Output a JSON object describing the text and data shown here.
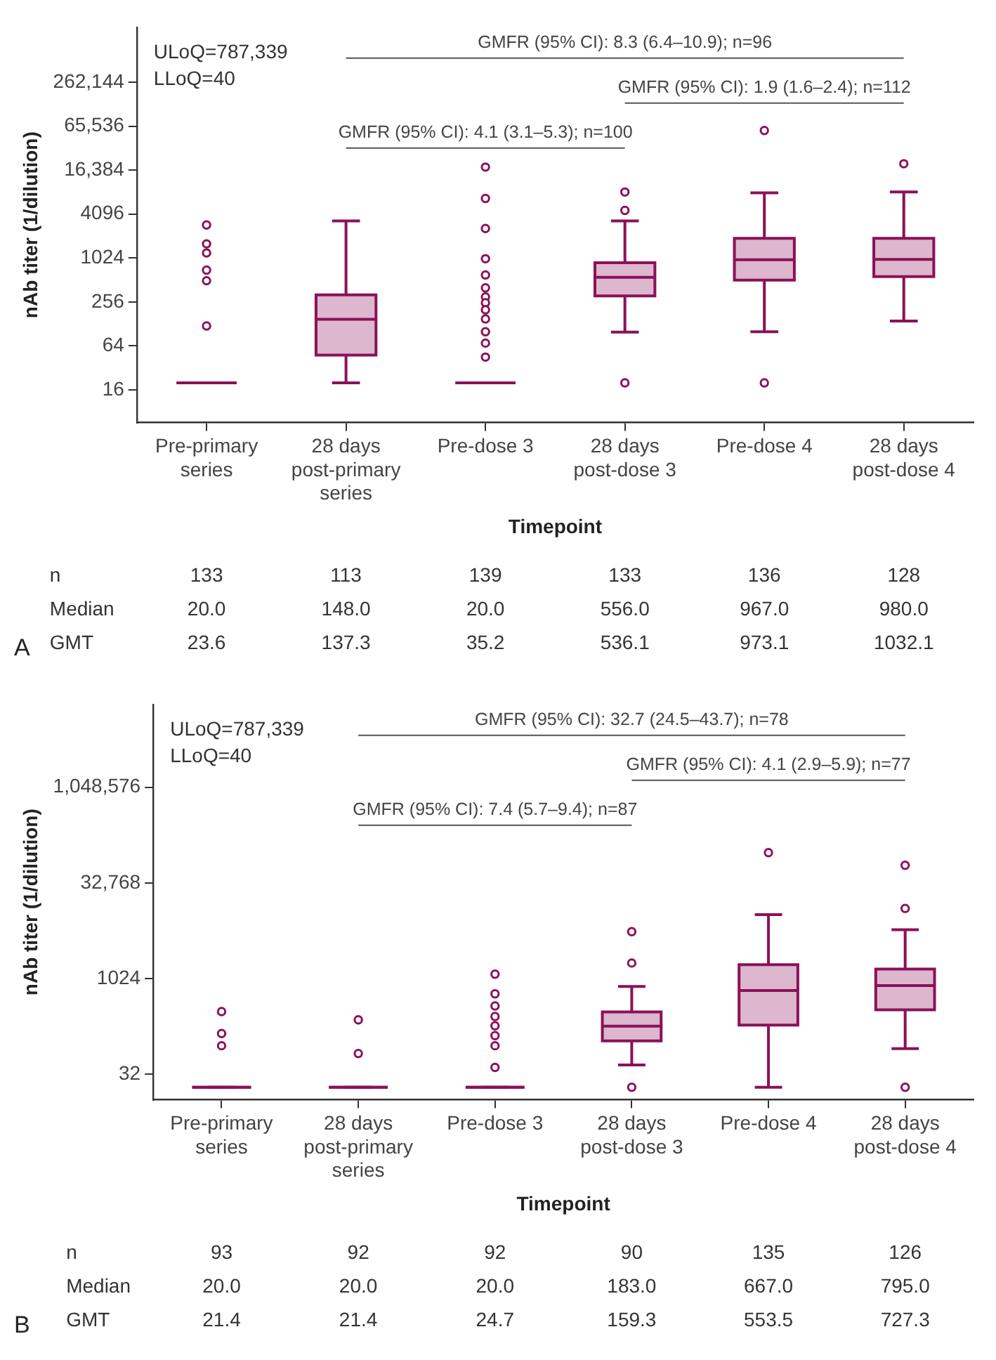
{
  "chart_data": [
    {
      "type": "box",
      "xlabel": "Timepoint",
      "ylabel": "nAb titer (1/dilution)",
      "color": "#8b1158",
      "log": "y",
      "categories": [
        "Pre-primary series",
        "28 days post-primary series",
        "Pre-dose 3",
        "28 days post-dose 3",
        "Pre-dose 4",
        "28 days post-dose 4"
      ],
      "ylim": [
        5.7,
        1480000
      ],
      "yticks": [
        16,
        64,
        256,
        1024,
        4096,
        {
          "value": 16384,
          "label": "16,384"
        },
        {
          "value": 65536,
          "label": "65,536"
        },
        {
          "value": 262144,
          "label": "262,144"
        }
      ],
      "boxes": [
        {
          "low": 20,
          "q1": 20,
          "median": 20,
          "q3": 20,
          "high": 20,
          "outliers": [
            2900,
            1600,
            1200,
            700,
            500,
            120
          ]
        },
        {
          "low": 20,
          "q1": 48,
          "median": 148,
          "q3": 320,
          "high": 3300
        },
        {
          "low": 20,
          "q1": 20,
          "median": 20,
          "q3": 20,
          "high": 20,
          "outliers": [
            18000,
            6700,
            2600,
            1000,
            600,
            400,
            300,
            250,
            200,
            150,
            100,
            70,
            45
          ]
        },
        {
          "low": 99,
          "q1": 310,
          "median": 556,
          "q3": 880,
          "high": 3300,
          "outliers": [
            8200,
            4600,
            20
          ]
        },
        {
          "low": 100,
          "q1": 510,
          "median": 967,
          "q3": 1900,
          "high": 8000,
          "outliers": [
            57000,
            20
          ]
        },
        {
          "low": 140,
          "q1": 570,
          "median": 980,
          "q3": 1900,
          "high": 8200,
          "outliers": [
            20000
          ]
        }
      ],
      "annotations": [
        "ULoQ=787,339",
        "LLoQ=40",
        "GMFR (95% CI): 8.3 (6.4–10.9); n=96",
        "GMFR (95% CI): 1.9 (1.6–2.4); n=112",
        "GMFR (95% CI): 4.1 (3.1–5.3); n=100",
        "A",
        "n",
        "133",
        "113",
        "139",
        "133",
        "136",
        "128",
        "Median",
        "20.0",
        "148.0",
        "20.0",
        "556.0",
        "967.0",
        "980.0",
        "GMT",
        "23.6",
        "137.3",
        "35.2",
        "536.1",
        "973.1",
        "1032.1"
      ]
    },
    {
      "type": "box",
      "xlabel": "Timepoint",
      "ylabel": "nAb titer (1/dilution)",
      "color": "#8b1158",
      "log": "y",
      "categories": [
        "Pre-primary series",
        "28 days post-primary series",
        "Pre-dose 3",
        "28 days post-dose 3",
        "Pre-dose 4",
        "28 days post-dose 4"
      ],
      "ylim": [
        12.7,
        21000000
      ],
      "yticks": [
        32,
        1024,
        {
          "value": 32768,
          "label": "32,768"
        },
        {
          "value": 1048576,
          "label": "1,048,576"
        }
      ],
      "boxes": [
        {
          "low": 20,
          "q1": 20,
          "median": 20,
          "q3": 20,
          "high": 20,
          "outliers": [
            310,
            140,
            90
          ]
        },
        {
          "low": 20,
          "q1": 20,
          "median": 20,
          "q3": 20,
          "high": 20,
          "outliers": [
            230,
            68
          ]
        },
        {
          "low": 20,
          "q1": 20,
          "median": 20,
          "q3": 20,
          "high": 20,
          "outliers": [
            1200,
            590,
            380,
            260,
            185,
            130,
            90,
            41
          ]
        },
        {
          "low": 45,
          "q1": 107,
          "median": 183,
          "q3": 306,
          "high": 770,
          "outliers": [
            5600,
            1800,
            20
          ]
        },
        {
          "low": 20,
          "q1": 190,
          "median": 667,
          "q3": 1700,
          "high": 10400,
          "outliers": [
            98000
          ]
        },
        {
          "low": 81,
          "q1": 330,
          "median": 795,
          "q3": 1450,
          "high": 6000,
          "outliers": [
            62000,
            13000,
            20
          ]
        }
      ],
      "annotations": [
        "ULoQ=787,339",
        "LLoQ=40",
        "GMFR (95% CI): 32.7 (24.5–43.7); n=78",
        "GMFR (95% CI): 4.1 (2.9–5.9); n=77",
        "GMFR (95% CI): 7.4 (5.7–9.4); n=87",
        "B",
        "n",
        "93",
        "92",
        "92",
        "90",
        "135",
        "126",
        "Median",
        "20.0",
        "20.0",
        "20.0",
        "183.0",
        "667.0",
        "795.0",
        "GMT",
        "21.4",
        "21.4",
        "24.7",
        "159.3",
        "553.5",
        "727.3"
      ]
    }
  ]
}
